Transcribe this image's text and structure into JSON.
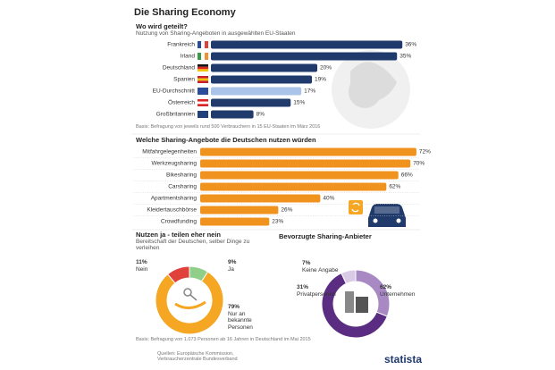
{
  "title": "Die Sharing Economy",
  "chart_data": [
    {
      "type": "bar",
      "title": "Wo wird geteilt?",
      "subtitle": "Nutzung von Sharing-Angeboten in ausgewählten EU-Staaten",
      "categories": [
        "Frankreich",
        "Irland",
        "Deutschland",
        "Spanien",
        "EU-Durchschnitt",
        "Österreich",
        "Großbritannien"
      ],
      "values": [
        36,
        35,
        20,
        19,
        17,
        15,
        8
      ],
      "value_labels": [
        "36%",
        "35%",
        "20%",
        "19%",
        "17%",
        "15%",
        "8%"
      ],
      "colors": [
        "#1f3a6b",
        "#1f3a6b",
        "#1f3a6b",
        "#1f3a6b",
        "#a9c4e8",
        "#1f3a6b",
        "#1f3a6b"
      ],
      "note": "Basis: Befragung von jeweils rund 500 Verbrauchern in 15 EU-Staaten im März 2016"
    },
    {
      "type": "bar",
      "title": "Welche Sharing-Angebote die Deutschen nutzen würden",
      "categories": [
        "Mitfahrgelegenheiten",
        "Werkzeugsharing",
        "Bikesharing",
        "Carsharing",
        "Apartmentsharing",
        "Kleidertauschbörse",
        "Crowdfunding"
      ],
      "values": [
        72,
        70,
        66,
        62,
        40,
        26,
        23
      ],
      "value_labels": [
        "72%",
        "70%",
        "66%",
        "62%",
        "40%",
        "26%",
        "23%"
      ],
      "color": "#f0921e"
    },
    {
      "type": "donut",
      "title": "Nutzen ja - teilen eher nein",
      "subtitle": "Bereitschaft der Deutschen, selber Dinge zu verleihen",
      "categories": [
        "Nein",
        "Ja",
        "Nur an bekannte Personen"
      ],
      "values": [
        11,
        9,
        79
      ],
      "value_labels": [
        "11%",
        "9%",
        "79%"
      ],
      "colors": [
        "#e0413a",
        "#8fcf8a",
        "#f5a623"
      ]
    },
    {
      "type": "donut",
      "title": "Bevorzugte Sharing-Anbieter",
      "categories": [
        "Keine Angabe",
        "Privatpersonen",
        "Unternehmen"
      ],
      "values": [
        7,
        31,
        62
      ],
      "value_labels": [
        "7%",
        "31%",
        "62%"
      ],
      "colors": [
        "#d9cbe6",
        "#a889c4",
        "#5b2d82"
      ]
    }
  ],
  "footer": {
    "note": "Basis: Befragung von 1.073 Personen ab 16 Jahren in Deutschland im Mai 2015",
    "sources": "Quellen: Europäische Kommission, Verbraucherzentrale Bundesverband",
    "brand": "statista"
  }
}
